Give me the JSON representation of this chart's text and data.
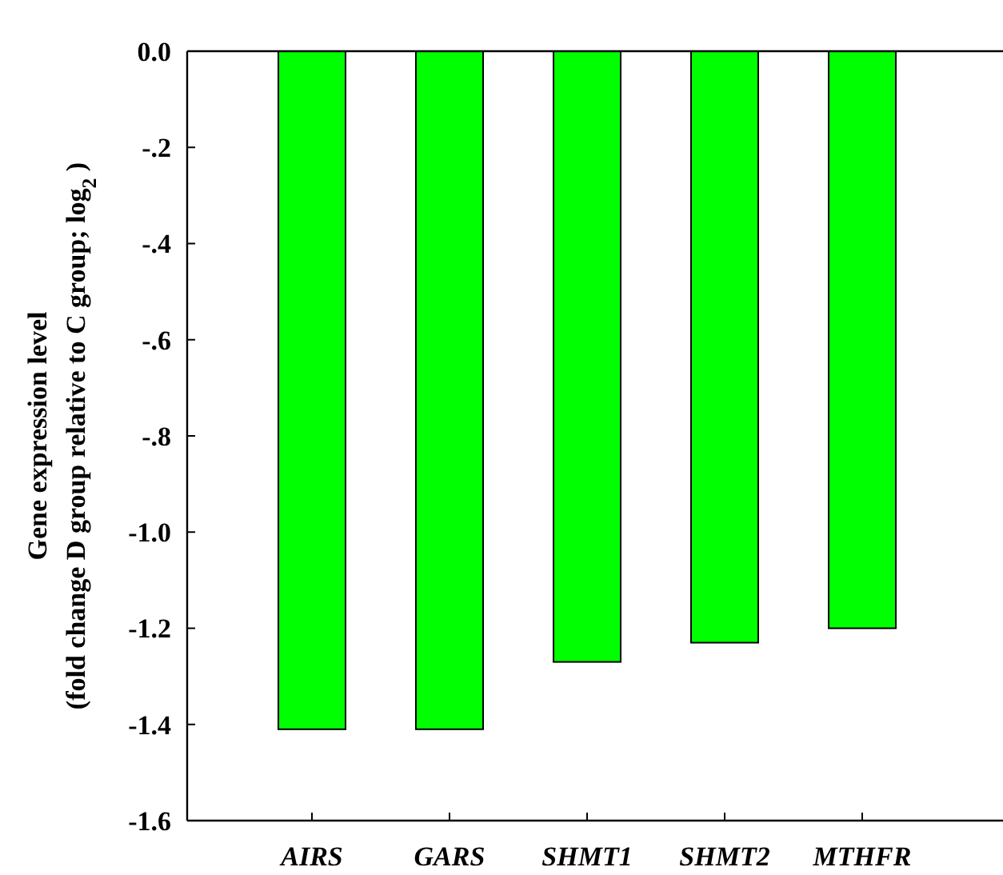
{
  "chart_data": {
    "type": "bar",
    "ylabel": "Gene expression level\n(fold change D group relative to C group; log$_{2}$ )",
    "categories": [
      "AIRS",
      "GARS",
      "SHMT1",
      "SHMT2",
      "MTHFR"
    ],
    "values": [
      -1.41,
      -1.41,
      -1.27,
      -1.23,
      -1.2
    ],
    "color": "#00ff00",
    "ylim": [
      -1.6,
      0
    ],
    "yticks": [
      {
        "value": 0,
        "label": "0.0"
      },
      {
        "value": -0.2,
        "label": "-.2"
      },
      {
        "value": -0.4,
        "label": "-.4"
      },
      {
        "value": -0.6,
        "label": "-.6"
      },
      {
        "value": -0.8,
        "label": "-.8"
      },
      {
        "value": -1,
        "label": "-1.0"
      },
      {
        "value": -1.2,
        "label": "-1.2"
      },
      {
        "value": -1.4,
        "label": "-1.4"
      },
      {
        "value": -1.6,
        "label": "-1.6"
      }
    ],
    "grid": false
  }
}
